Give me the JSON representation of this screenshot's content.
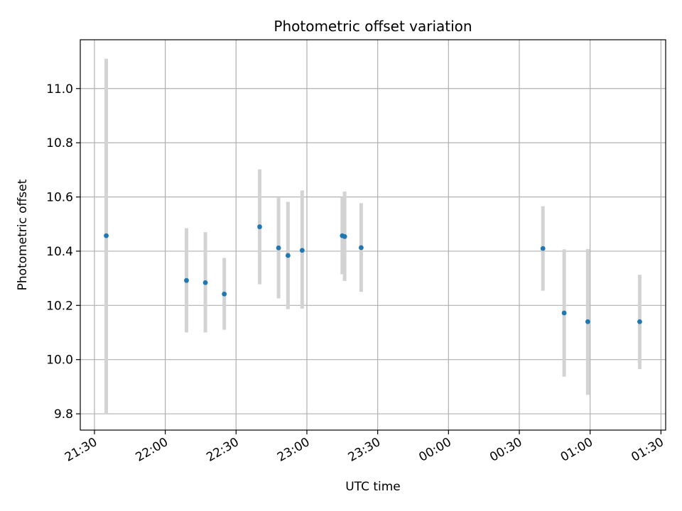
{
  "chart_data": {
    "type": "scatter",
    "title": "Photometric offset variation",
    "xlabel": "UTC time",
    "ylabel": "Photometric offset",
    "grid": true,
    "x_ticks": [
      "21:30",
      "22:00",
      "22:30",
      "23:00",
      "23:30",
      "00:00",
      "00:30",
      "01:00",
      "01:30"
    ],
    "y_ticks": [
      "9.8",
      "10.0",
      "10.2",
      "10.4",
      "10.6",
      "10.8",
      "11.0"
    ],
    "xlim": [
      "21:24",
      "01:32"
    ],
    "ylim": [
      9.74,
      11.18
    ],
    "point_color": "#1f77b4",
    "errorbar_color": "#d3d3d3",
    "points": [
      {
        "x": "21:35",
        "y": 10.457,
        "ylow": 9.8,
        "yhigh": 11.11
      },
      {
        "x": "22:09",
        "y": 10.292,
        "ylow": 10.1,
        "yhigh": 10.485
      },
      {
        "x": "22:17",
        "y": 10.284,
        "ylow": 10.1,
        "yhigh": 10.47
      },
      {
        "x": "22:25",
        "y": 10.242,
        "ylow": 10.11,
        "yhigh": 10.375
      },
      {
        "x": "22:40",
        "y": 10.49,
        "ylow": 10.278,
        "yhigh": 10.702
      },
      {
        "x": "22:48",
        "y": 10.412,
        "ylow": 10.226,
        "yhigh": 10.597
      },
      {
        "x": "22:52",
        "y": 10.384,
        "ylow": 10.186,
        "yhigh": 10.582
      },
      {
        "x": "22:58",
        "y": 10.403,
        "ylow": 10.188,
        "yhigh": 10.624
      },
      {
        "x": "23:15",
        "y": 10.457,
        "ylow": 10.315,
        "yhigh": 10.6
      },
      {
        "x": "23:16",
        "y": 10.454,
        "ylow": 10.29,
        "yhigh": 10.62
      },
      {
        "x": "23:23",
        "y": 10.413,
        "ylow": 10.25,
        "yhigh": 10.577
      },
      {
        "x": "00:40",
        "y": 10.41,
        "ylow": 10.254,
        "yhigh": 10.566
      },
      {
        "x": "00:49",
        "y": 10.172,
        "ylow": 9.937,
        "yhigh": 10.407
      },
      {
        "x": "00:59",
        "y": 10.14,
        "ylow": 9.87,
        "yhigh": 10.408
      },
      {
        "x": "01:21",
        "y": 10.14,
        "ylow": 9.965,
        "yhigh": 10.313
      }
    ]
  }
}
